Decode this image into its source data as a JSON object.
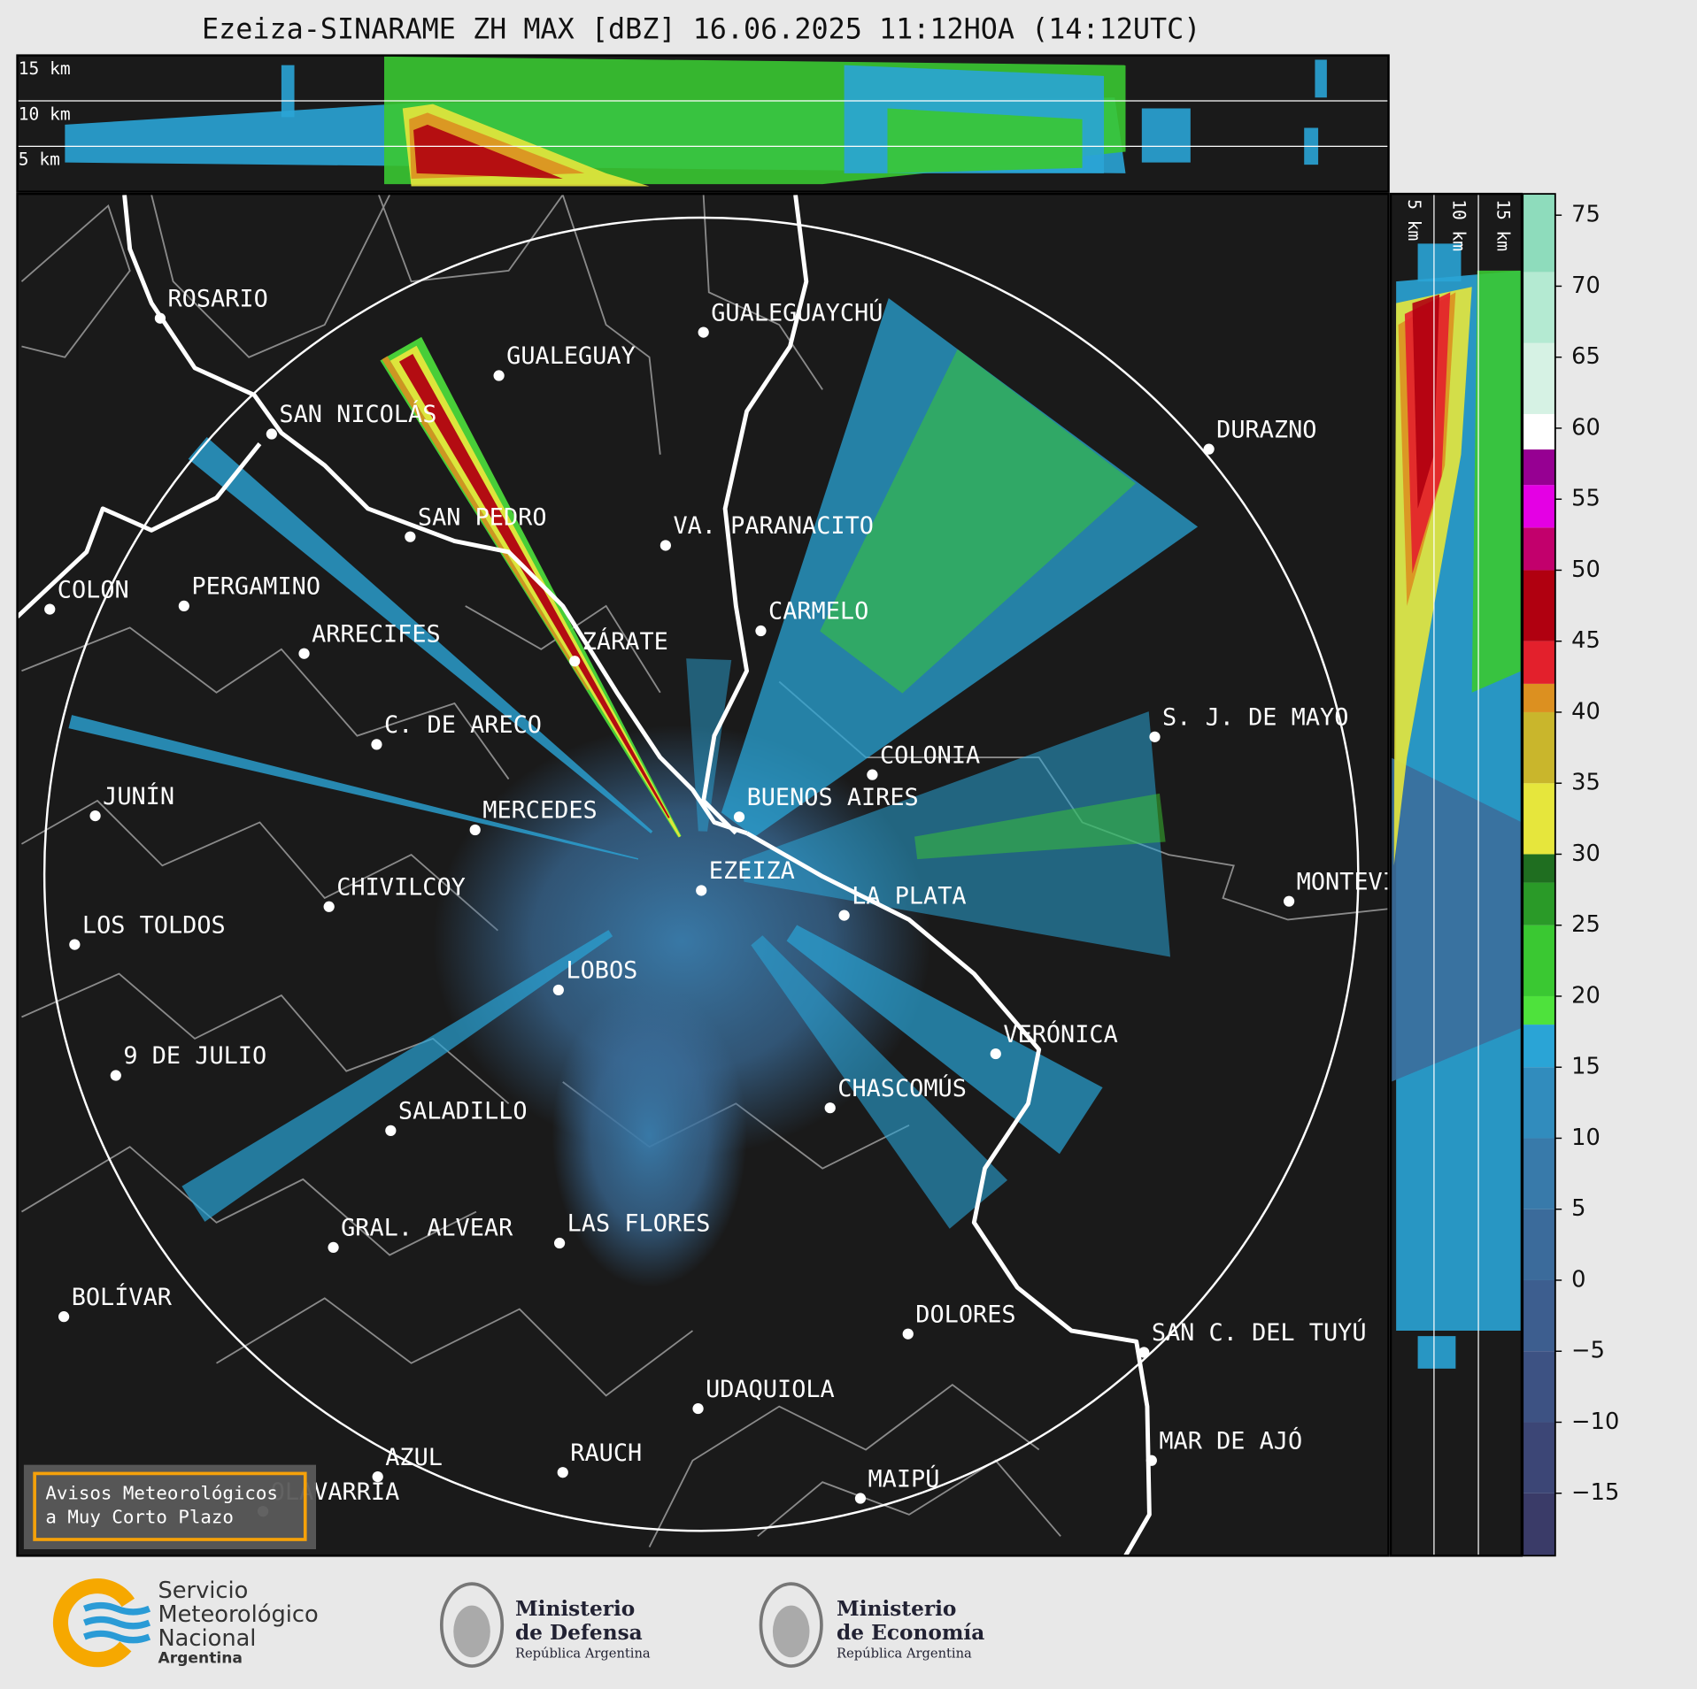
{
  "title": "Ezeiza-SINARAME ZH MAX [dBZ] 16.06.2025 11:12HOA (14:12UTC)",
  "top_section": {
    "height_labels": [
      "15 km",
      "10 km",
      "5 km"
    ]
  },
  "side_section": {
    "height_labels": [
      "5 km",
      "10 km",
      "15 km"
    ]
  },
  "map": {
    "cities": [
      "ROSARIO",
      "GUALEGUAYCHÚ",
      "GUALEGUAY",
      "SAN NICOLÁS",
      "DURAZNO",
      "SAN PEDRO",
      "VA. PARANACITO",
      "COLON",
      "PERGAMINO",
      "CARMELO",
      "ARRECIFES",
      "ZÁRATE",
      "S. J. DE MAYO",
      "C. DE ARECO",
      "COLONIA",
      "JUNÍN",
      "BUENOS AIRES",
      "MERCEDES",
      "EZEIZA",
      "MONTEVIDEO",
      "CHIVILCOY",
      "LA PLATA",
      "LOS TOLDOS",
      "LOBOS",
      "VERÓNICA",
      "9 DE JULIO",
      "CHASCOMÚS",
      "SALADILLO",
      "GRAL. ALVEAR",
      "LAS FLORES",
      "BOLÍVAR",
      "DOLORES",
      "SAN C. DEL TUYÚ",
      "UDAQUIOLA",
      "MAR DE AJÓ",
      "RAUCH",
      "AZUL",
      "MAIPÚ",
      "OLAVARRÍA"
    ]
  },
  "colorbar": {
    "lim": [
      -19.4,
      76.5
    ],
    "ticks": [
      75,
      70,
      65,
      60,
      55,
      50,
      45,
      40,
      35,
      30,
      25,
      20,
      15,
      10,
      5,
      0,
      {
        "value": -5,
        "label": "−5"
      },
      {
        "value": -10,
        "label": "−10"
      },
      {
        "value": -15,
        "label": "−15"
      }
    ],
    "bands": [
      {
        "from": -19.4,
        "to": -15,
        "color": "#3a3b68"
      },
      {
        "from": -15,
        "to": -10,
        "color": "#3c4676"
      },
      {
        "from": -10,
        "to": -5,
        "color": "#3d5283"
      },
      {
        "from": -5,
        "to": 0,
        "color": "#3d5e8f"
      },
      {
        "from": 0,
        "to": 5,
        "color": "#3b6b9b"
      },
      {
        "from": 5,
        "to": 10,
        "color": "#387aaa"
      },
      {
        "from": 10,
        "to": 15,
        "color": "#318cbd"
      },
      {
        "from": 15,
        "to": 18,
        "color": "#2aa4d6"
      },
      {
        "from": 18,
        "to": 20,
        "color": "#4ee23c"
      },
      {
        "from": 20,
        "to": 25,
        "color": "#3ac832"
      },
      {
        "from": 25,
        "to": 28,
        "color": "#2a9a28"
      },
      {
        "from": 28,
        "to": 30,
        "color": "#1f6e20"
      },
      {
        "from": 30,
        "to": 35,
        "color": "#e6e63c"
      },
      {
        "from": 35,
        "to": 40,
        "color": "#c9b62c"
      },
      {
        "from": 40,
        "to": 42,
        "color": "#dc9020"
      },
      {
        "from": 42,
        "to": 45,
        "color": "#e3202c"
      },
      {
        "from": 45,
        "to": 50,
        "color": "#b00010"
      },
      {
        "from": 50,
        "to": 53,
        "color": "#c2006c"
      },
      {
        "from": 53,
        "to": 56,
        "color": "#e400e4"
      },
      {
        "from": 56,
        "to": 58.5,
        "color": "#960092"
      },
      {
        "from": 58.5,
        "to": 61,
        "color": "#ffffff"
      },
      {
        "from": 61,
        "to": 66,
        "color": "#d6f2e4"
      },
      {
        "from": 66,
        "to": 71,
        "color": "#b4ead2"
      },
      {
        "from": 71,
        "to": 76.5,
        "color": "#8edcbc"
      }
    ]
  },
  "notice": {
    "lines": [
      "Avisos Meteorológicos",
      "a Muy Corto Plazo"
    ]
  },
  "logos": {
    "smn": [
      "Servicio",
      "Meteorológico",
      "Nacional",
      "Argentina"
    ],
    "defensa": [
      "Ministerio",
      "de Defensa",
      "República Argentina"
    ],
    "economia": [
      "Ministerio",
      "de Economía",
      "República Argentina"
    ]
  }
}
